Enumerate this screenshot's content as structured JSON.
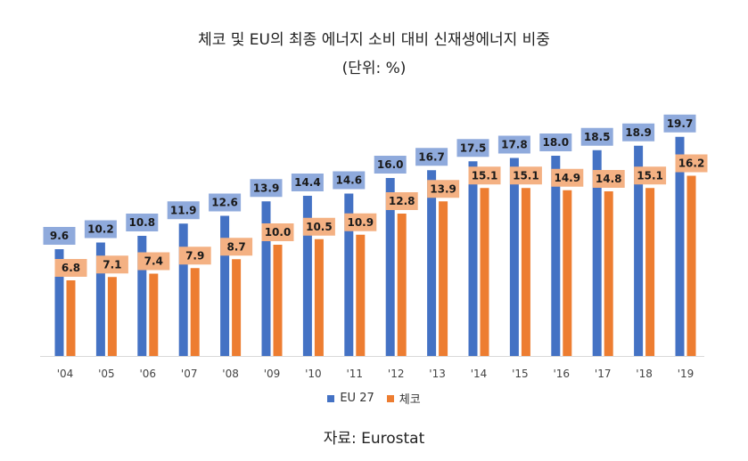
{
  "title": "체코 및 EU의 최종 에너지 소비 대비 신재생에너지 비중",
  "subtitle": "(단위: %)",
  "source": "자료: Eurostat",
  "colors": {
    "eu": "#4472C4",
    "eu_label": "#8FAADC",
    "cz": "#ED7D31",
    "cz_label": "#F4B183",
    "axis": "#D9D9D9"
  },
  "chart_data": {
    "type": "bar",
    "categories": [
      "'04",
      "'05",
      "'06",
      "'07",
      "'08",
      "'09",
      "'10",
      "'11",
      "'12",
      "'13",
      "'14",
      "'15",
      "'16",
      "'17",
      "'18",
      "'19"
    ],
    "series": [
      {
        "name": "EU 27",
        "values": [
          9.6,
          10.2,
          10.8,
          11.9,
          12.6,
          13.9,
          14.4,
          14.6,
          16.0,
          16.7,
          17.5,
          17.8,
          18.0,
          18.5,
          18.9,
          19.7
        ]
      },
      {
        "name": "체코",
        "values": [
          6.8,
          7.1,
          7.4,
          7.9,
          8.7,
          10.0,
          10.5,
          10.9,
          12.8,
          13.9,
          15.1,
          15.1,
          14.9,
          14.8,
          15.1,
          16.2
        ]
      }
    ],
    "legend_position": "bottom",
    "grid": false,
    "ylim": [
      0,
      20
    ]
  }
}
